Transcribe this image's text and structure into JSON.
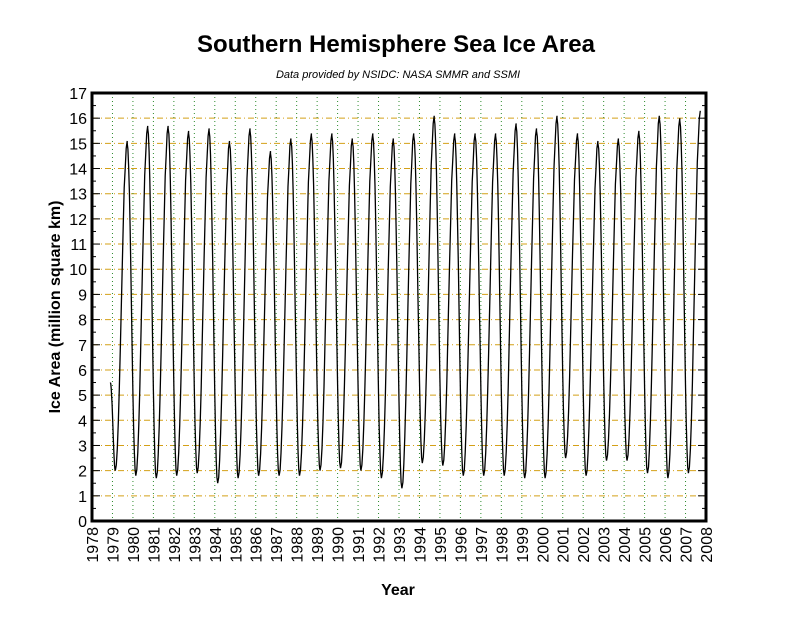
{
  "chart_data": {
    "type": "line",
    "title": "Southern Hemisphere Sea Ice Area",
    "subtitle": "Data provided by NSIDC: NASA SMMR and SSMI",
    "xlabel": "Year",
    "ylabel": "Ice Area (million square km)",
    "xlim": [
      1978,
      2008
    ],
    "ylim": [
      0,
      17
    ],
    "grid": true,
    "xticks": [
      "1978",
      "1979",
      "1980",
      "1981",
      "1982",
      "1983",
      "1984",
      "1985",
      "1986",
      "1987",
      "1988",
      "1989",
      "1990",
      "1991",
      "1992",
      "1993",
      "1994",
      "1995",
      "1996",
      "1997",
      "1998",
      "1999",
      "2000",
      "2001",
      "2002",
      "2003",
      "2004",
      "2005",
      "2006",
      "2007",
      "2008"
    ],
    "yticks": [
      "0",
      "1",
      "2",
      "3",
      "4",
      "5",
      "6",
      "7",
      "8",
      "9",
      "10",
      "11",
      "12",
      "13",
      "14",
      "15",
      "16",
      "17"
    ],
    "series": [
      {
        "name": "Ice Area",
        "color": "#000000",
        "start": [
          1978.9,
          5.5
        ],
        "annual_min": [
          2.0,
          1.8,
          1.7,
          1.8,
          1.9,
          1.5,
          1.7,
          1.8,
          1.8,
          1.8,
          2.0,
          2.1,
          2.0,
          1.7,
          1.3,
          2.3,
          2.2,
          1.8,
          1.8,
          1.8,
          1.7,
          1.7,
          2.5,
          1.8,
          2.4,
          2.4,
          1.9,
          1.7,
          1.9
        ],
        "annual_max": [
          15.0,
          15.6,
          15.6,
          15.4,
          15.5,
          15.0,
          15.5,
          14.6,
          15.1,
          15.3,
          15.3,
          15.1,
          15.3,
          15.1,
          15.3,
          16.0,
          15.3,
          15.3,
          15.3,
          15.7,
          15.5,
          16.0,
          15.3,
          15.0,
          15.1,
          15.4,
          16.0,
          15.9,
          16.2
        ],
        "first_year": 1979,
        "min_season": 0.14,
        "max_season": 0.72
      }
    ],
    "grid_colors": {
      "x": "#2e8b2e",
      "y": "#d4a017"
    }
  }
}
